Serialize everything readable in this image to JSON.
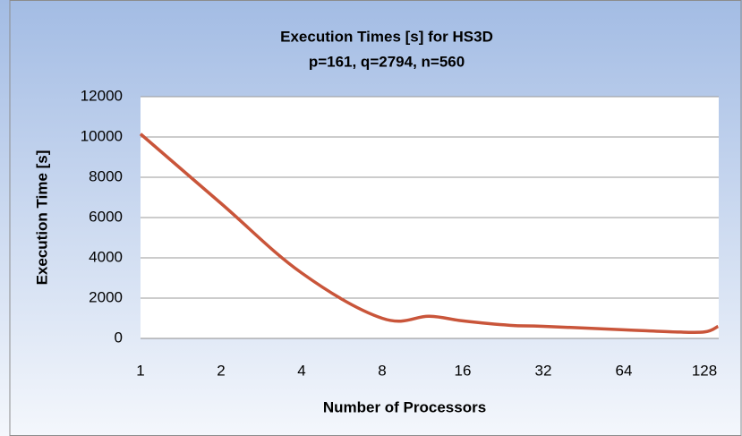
{
  "chart_data": {
    "type": "line",
    "title": "Execution Times [s] for HS3D",
    "subtitle": "p=161, q=2794, n=560",
    "x_label": "Number of Processors",
    "y_label": "Execution Time  [s]",
    "xscale": "log2",
    "x": [
      1,
      2,
      4,
      8,
      12,
      16,
      24,
      32,
      64,
      96,
      128,
      144
    ],
    "series": [
      {
        "name": "Execution Time",
        "color": "#c9553a",
        "values": [
          10150,
          6700,
          3250,
          1000,
          1100,
          870,
          650,
          600,
          430,
          330,
          320,
          600
        ]
      }
    ],
    "xlim": [
      1,
      144
    ],
    "xticks": [
      1,
      2,
      4,
      8,
      16,
      32,
      64,
      128
    ],
    "ylim": [
      0,
      12000
    ],
    "yticks": [
      0,
      2000,
      4000,
      6000,
      8000,
      10000,
      12000
    ],
    "grid": true,
    "legend": false
  }
}
